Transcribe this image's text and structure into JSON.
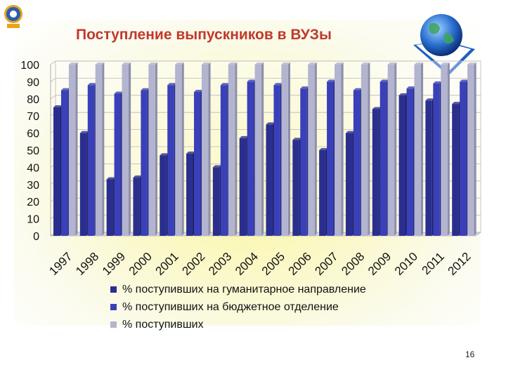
{
  "slide": {
    "title": "Поступление выпускников в ВУЗы",
    "page_number": "16"
  },
  "colors": {
    "humanities": "#2a2f8f",
    "budget": "#3a40b8",
    "total": "#b3b4cf",
    "title": "#c0392b"
  },
  "chart_data": {
    "type": "bar",
    "title": "Поступление выпускников в ВУЗы",
    "categories": [
      "1997",
      "1998",
      "1999",
      "2000",
      "2001",
      "2002",
      "2003",
      "2004",
      "2005",
      "2006",
      "2007",
      "2008",
      "2009",
      "2010",
      "2011",
      "2012"
    ],
    "series": [
      {
        "name": "% поступивших на гуманитарное направление",
        "values": [
          75,
          60,
          33,
          34,
          47,
          48,
          40,
          57,
          65,
          56,
          50,
          60,
          74,
          82,
          79,
          77
        ]
      },
      {
        "name": "% поступивших на бюджетное отделение",
        "values": [
          85,
          88,
          83,
          85,
          88,
          84,
          88,
          90,
          88,
          86,
          90,
          85,
          90,
          86,
          89,
          90
        ]
      },
      {
        "name": "% поступивших",
        "values": [
          100,
          100,
          100,
          100,
          100,
          100,
          100,
          100,
          100,
          100,
          100,
          100,
          100,
          100,
          100,
          100
        ]
      }
    ],
    "ylim": [
      0,
      100
    ],
    "yticks": [
      0,
      10,
      20,
      30,
      40,
      50,
      60,
      70,
      80,
      90,
      100
    ],
    "grid": true,
    "legend": "bottom",
    "xlabel": "",
    "ylabel": ""
  }
}
